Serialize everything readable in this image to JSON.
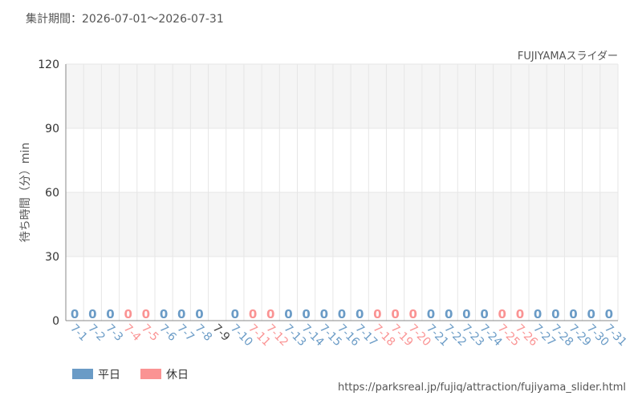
{
  "chart_data": {
    "type": "bar",
    "title": "集計期間：2026-07-01〜2026-07-31",
    "subtitle": "FUJIYAMAスライダー",
    "y_label": "待ち時間（分）min",
    "source": "https://parksreal.jp/fujiq/attraction/fujiyama_slider.html",
    "categories": [
      "7-1",
      "7-2",
      "7-3",
      "7-4",
      "7-5",
      "7-6",
      "7-7",
      "7-8",
      "7-9",
      "7-10",
      "7-11",
      "7-12",
      "7-13",
      "7-14",
      "7-15",
      "7-16",
      "7-17",
      "7-18",
      "7-19",
      "7-20",
      "7-21",
      "7-22",
      "7-23",
      "7-24",
      "7-25",
      "7-26",
      "7-27",
      "7-28",
      "7-29",
      "7-30",
      "7-31"
    ],
    "series": [
      {
        "name": "平日",
        "color": "#6a9bc6",
        "values": [
          0,
          0,
          0,
          null,
          null,
          0,
          0,
          0,
          null,
          0,
          null,
          null,
          0,
          0,
          0,
          0,
          0,
          null,
          null,
          null,
          0,
          0,
          0,
          0,
          null,
          null,
          0,
          0,
          0,
          0,
          0
        ]
      },
      {
        "name": "休日",
        "color": "#fa9393",
        "values": [
          null,
          null,
          null,
          0,
          0,
          null,
          null,
          null,
          null,
          null,
          0,
          0,
          null,
          null,
          null,
          null,
          null,
          0,
          0,
          0,
          null,
          null,
          null,
          null,
          0,
          0,
          null,
          null,
          null,
          null,
          null
        ]
      }
    ],
    "ylim": [
      0,
      120
    ],
    "yticks": [
      0,
      30,
      60,
      90,
      120
    ],
    "grid": true
  }
}
